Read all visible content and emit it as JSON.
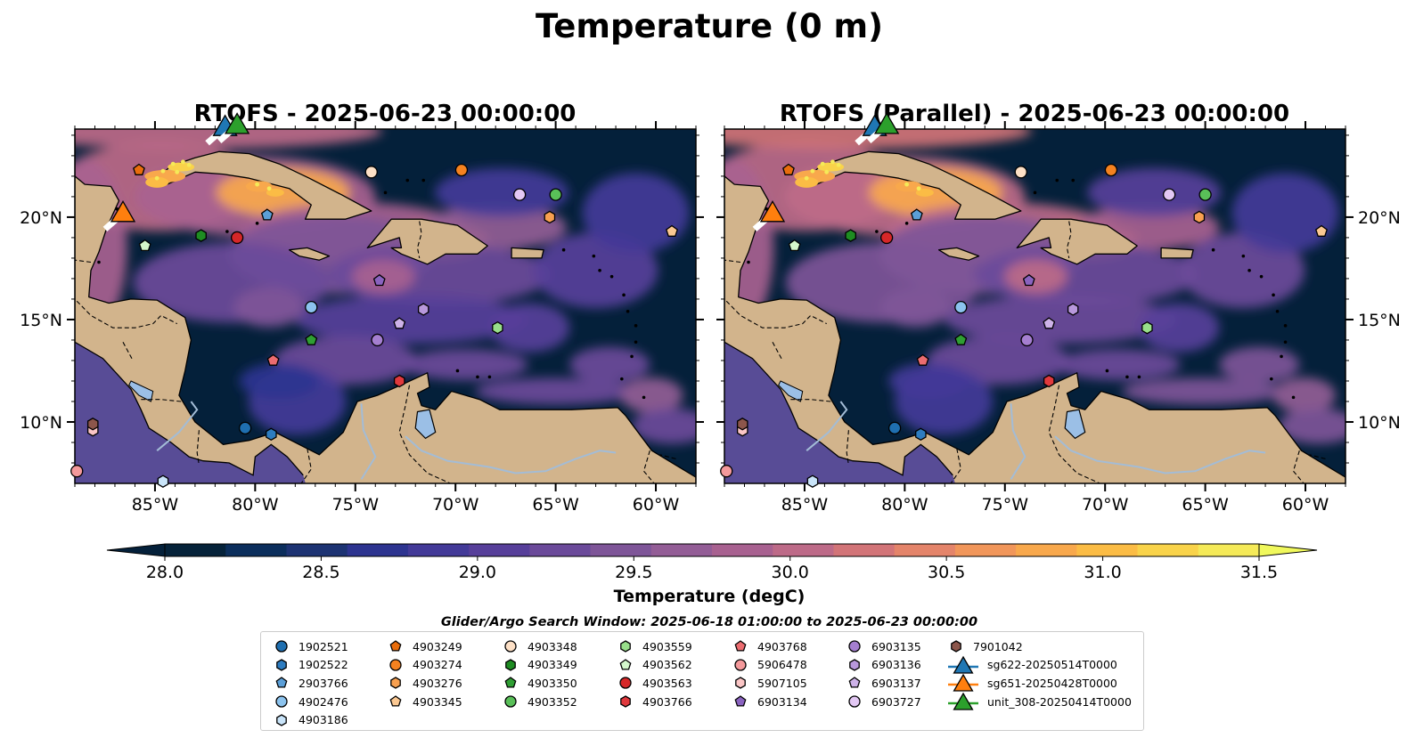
{
  "suptitle": "Temperature (0 m)",
  "panels": [
    {
      "title": "RTOFS - 2025-06-23 00:00:00",
      "ylabels_side": "left"
    },
    {
      "title": "RTOFS (Parallel) - 2025-06-23 00:00:00",
      "ylabels_side": "right"
    }
  ],
  "map": {
    "lon_range": [
      -89.0,
      -58.0
    ],
    "lat_range": [
      7.0,
      24.3
    ],
    "lon_ticks": [
      "85°W",
      "80°W",
      "75°W",
      "70°W",
      "65°W",
      "60°W"
    ],
    "lon_tick_values": [
      -85,
      -80,
      -75,
      -70,
      -65,
      -60
    ],
    "lat_ticks": [
      "10°N",
      "15°N",
      "20°N"
    ],
    "lat_tick_values": [
      10,
      15,
      20
    ],
    "land_color": "#d2b48c",
    "ocean_base_color": "#04203a",
    "lake_color": "#9bbfe6"
  },
  "colorbar": {
    "label": "Temperature (degC)",
    "ticks": [
      "28.0",
      "28.5",
      "29.0",
      "29.5",
      "30.0",
      "30.5",
      "31.0",
      "31.5"
    ],
    "tick_values": [
      28.0,
      28.5,
      29.0,
      29.5,
      30.0,
      30.5,
      31.0,
      31.5
    ],
    "range": [
      28.0,
      31.5
    ],
    "colors": [
      "#05223a",
      "#0b2e5c",
      "#1d3373",
      "#2d3490",
      "#433a98",
      "#573f9a",
      "#6b4a9a",
      "#7e5598",
      "#935d96",
      "#a86190",
      "#bd6a88",
      "#d27478",
      "#e4846a",
      "#f1965a",
      "#f8a84c",
      "#fbbc45",
      "#f9d34a",
      "#f5ea58"
    ],
    "under_color": "#04203a",
    "over_color": "#f0f85c"
  },
  "search_window": "Glider/Argo Search Window: 2025-06-18 01:00:00 to 2025-06-23 00:00:00",
  "legend": {
    "columns": [
      [
        {
          "label": "1902521",
          "marker": "circle",
          "color": "#1f6fb0"
        },
        {
          "label": "1902522",
          "marker": "hexagon",
          "color": "#2d7cc0"
        },
        {
          "label": "2903766",
          "marker": "pentagon",
          "color": "#5b9fd8"
        },
        {
          "label": "4902476",
          "marker": "circle",
          "color": "#8cc3ee"
        },
        {
          "label": "4903186",
          "marker": "hexagon",
          "color": "#c9e4f9"
        }
      ],
      [
        {
          "label": "4903249",
          "marker": "pentagon",
          "color": "#e96d0c"
        },
        {
          "label": "4903274",
          "marker": "circle",
          "color": "#f58220"
        },
        {
          "label": "4903276",
          "marker": "hexagon",
          "color": "#f8a050"
        },
        {
          "label": "4903345",
          "marker": "pentagon",
          "color": "#fbc892"
        }
      ],
      [
        {
          "label": "4903348",
          "marker": "circle",
          "color": "#fde0c6"
        },
        {
          "label": "4903349",
          "marker": "hexagon",
          "color": "#1e8c22"
        },
        {
          "label": "4903350",
          "marker": "pentagon",
          "color": "#2f9e33"
        },
        {
          "label": "4903352",
          "marker": "circle",
          "color": "#59bf58"
        }
      ],
      [
        {
          "label": "4903559",
          "marker": "hexagon",
          "color": "#98df8a"
        },
        {
          "label": "4903562",
          "marker": "pentagon",
          "color": "#d4f7cc"
        },
        {
          "label": "4903563",
          "marker": "circle",
          "color": "#d62728"
        },
        {
          "label": "4903766",
          "marker": "hexagon",
          "color": "#e0393d"
        }
      ],
      [
        {
          "label": "4903768",
          "marker": "pentagon",
          "color": "#ec6c70"
        },
        {
          "label": "5906478",
          "marker": "circle",
          "color": "#f4999b"
        },
        {
          "label": "5907105",
          "marker": "hexagon",
          "color": "#fbc6c6"
        },
        {
          "label": "6903134",
          "marker": "pentagon",
          "color": "#8a63c0"
        }
      ],
      [
        {
          "label": "6903135",
          "marker": "circle",
          "color": "#a57fd0"
        },
        {
          "label": "6903136",
          "marker": "hexagon",
          "color": "#b898dc"
        },
        {
          "label": "6903137",
          "marker": "pentagon",
          "color": "#cdb2e8"
        },
        {
          "label": "6903727",
          "marker": "circle",
          "color": "#e3c8f4"
        }
      ],
      [
        {
          "label": "7901042",
          "marker": "hexagon",
          "color": "#8c564b"
        },
        {
          "label": "sg622-20250514T0000",
          "marker": "triangle-line",
          "color": "#1f77b4"
        },
        {
          "label": "sg651-20250428T0000",
          "marker": "triangle-line",
          "color": "#ff7f0e"
        },
        {
          "label": "unit_308-20250414T0000",
          "marker": "triangle-line",
          "color": "#2ca02c"
        }
      ]
    ]
  },
  "floats": [
    {
      "id": "1902521",
      "lon": -80.5,
      "lat": 9.7
    },
    {
      "id": "1902522",
      "lon": -79.2,
      "lat": 9.4
    },
    {
      "id": "2903766",
      "lon": -79.4,
      "lat": 20.1
    },
    {
      "id": "4902476",
      "lon": -77.2,
      "lat": 15.6
    },
    {
      "id": "4903186",
      "lon": -84.6,
      "lat": 7.1
    },
    {
      "id": "4903249",
      "lon": -85.8,
      "lat": 22.3
    },
    {
      "id": "4903274",
      "lon": -69.7,
      "lat": 22.3
    },
    {
      "id": "4903276",
      "lon": -65.3,
      "lat": 20.0
    },
    {
      "id": "4903345",
      "lon": -59.2,
      "lat": 19.3
    },
    {
      "id": "4903348",
      "lon": -74.2,
      "lat": 22.2
    },
    {
      "id": "4903349",
      "lon": -82.7,
      "lat": 19.1
    },
    {
      "id": "4903350",
      "lon": -77.2,
      "lat": 14.0
    },
    {
      "id": "4903352",
      "lon": -65.0,
      "lat": 21.1
    },
    {
      "id": "4903559",
      "lon": -67.9,
      "lat": 14.6
    },
    {
      "id": "4903562",
      "lon": -85.5,
      "lat": 18.6
    },
    {
      "id": "4903563",
      "lon": -80.9,
      "lat": 19.0
    },
    {
      "id": "4903766",
      "lon": -72.8,
      "lat": 12.0
    },
    {
      "id": "4903768",
      "lon": -79.1,
      "lat": 13.0
    },
    {
      "id": "5906478",
      "lon": -88.9,
      "lat": 7.6
    },
    {
      "id": "5907105",
      "lon": -88.1,
      "lat": 9.6
    },
    {
      "id": "6903134",
      "lon": -73.8,
      "lat": 16.9
    },
    {
      "id": "6903135",
      "lon": -73.9,
      "lat": 14.0
    },
    {
      "id": "6903136",
      "lon": -71.6,
      "lat": 15.5
    },
    {
      "id": "6903137",
      "lon": -72.8,
      "lat": 14.8
    },
    {
      "id": "6903727",
      "lon": -66.8,
      "lat": 21.1
    },
    {
      "id": "7901042",
      "lon": -88.1,
      "lat": 9.9
    }
  ],
  "gliders": [
    {
      "id": "sg622-20250514T0000",
      "lon": -81.5,
      "lat": 24.4
    },
    {
      "id": "sg651-20250428T0000",
      "lon": -86.6,
      "lat": 20.2
    },
    {
      "id": "unit_308-20250414T0000",
      "lon": -80.9,
      "lat": 24.5
    }
  ]
}
